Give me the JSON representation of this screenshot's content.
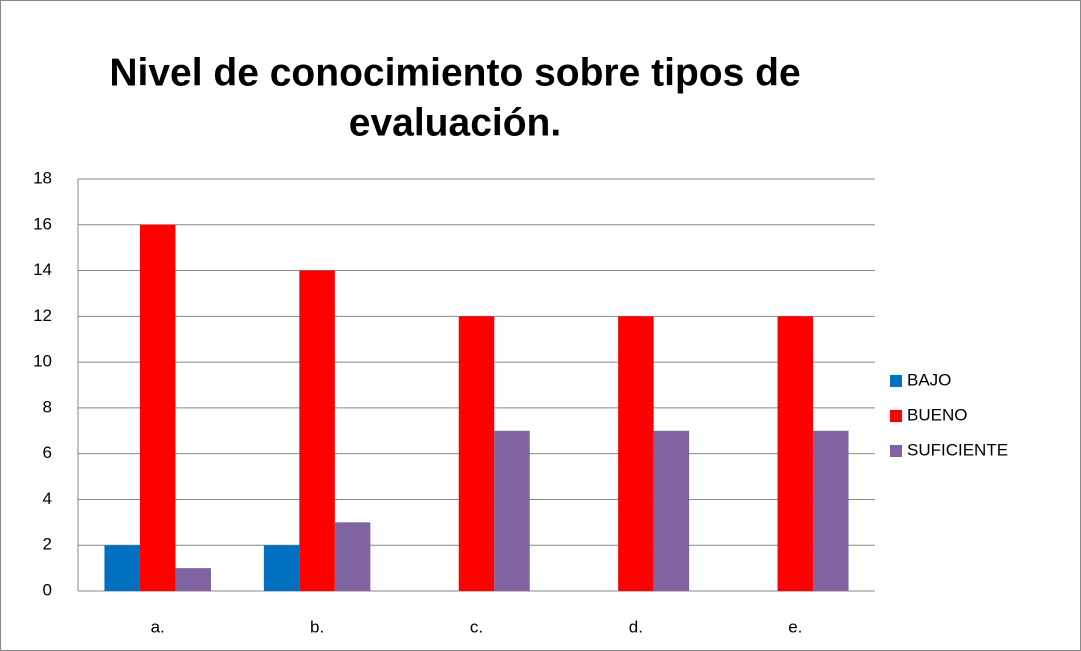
{
  "chart_data": {
    "type": "bar",
    "title": [
      "Nivel de conocimiento sobre tipos de",
      "evaluación."
    ],
    "categories": [
      "a.",
      "b.",
      "c.",
      "d.",
      "e."
    ],
    "series": [
      {
        "name": "BAJO",
        "color": "#0070c0",
        "values": [
          2,
          2,
          0,
          0,
          0
        ]
      },
      {
        "name": "BUENO",
        "color": "#ff0000",
        "values": [
          16,
          14,
          12,
          12,
          12
        ]
      },
      {
        "name": "SUFICIENTE",
        "color": "#8064a2",
        "values": [
          1,
          3,
          7,
          7,
          7
        ]
      }
    ],
    "ylim": [
      0,
      18
    ],
    "yticks": [
      0,
      2,
      4,
      6,
      8,
      10,
      12,
      14,
      16,
      18
    ],
    "grid": true,
    "legend": "right"
  }
}
